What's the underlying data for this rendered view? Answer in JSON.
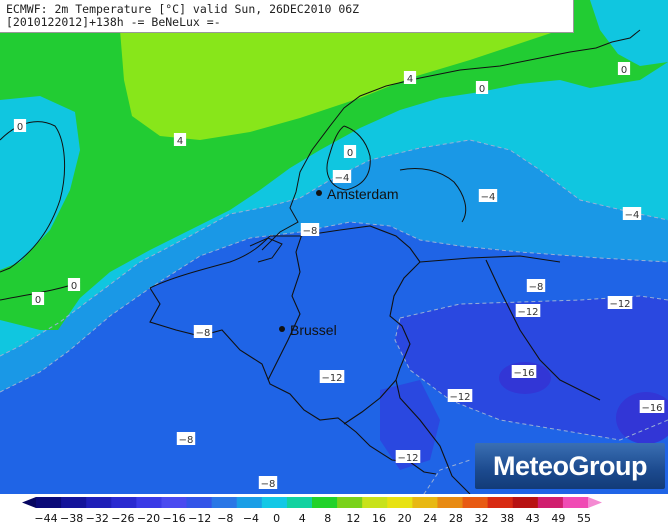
{
  "header": {
    "line1": "ECMWF: 2m Temperature [°C] valid Sun, 26DEC2010 06Z",
    "line2": "[2010122012]+138h -= BeNeLux =-"
  },
  "cities": [
    {
      "name": "Amsterdam"
    },
    {
      "name": "Brussel"
    }
  ],
  "isotherm_labels": [
    "4",
    "4",
    "0",
    "0",
    "0",
    "-4",
    "-4",
    "-4",
    "-8",
    "-8",
    "-8",
    "-8",
    "-8",
    "-12",
    "-12",
    "-12",
    "-12",
    "-12",
    "-16",
    "-16",
    "0",
    "0",
    "0"
  ],
  "logo": {
    "text": "MeteoGroup"
  },
  "colorbar": {
    "ticks": [
      "-44",
      "-38",
      "-32",
      "-26",
      "-20",
      "-16",
      "-12",
      "-8",
      "-4",
      "0",
      "4",
      "8",
      "12",
      "16",
      "20",
      "24",
      "28",
      "32",
      "38",
      "43",
      "49",
      "55"
    ],
    "colors": [
      "#0a0a78",
      "#14149a",
      "#1f1fb8",
      "#2a2ad0",
      "#3a3ae6",
      "#4a4af0",
      "#3355e8",
      "#2a77e6",
      "#1a9ee6",
      "#12c8e6",
      "#12d2a0",
      "#22d22a",
      "#7ad21a",
      "#c8e21a",
      "#e8e212",
      "#e8b812",
      "#e88a12",
      "#e85a12",
      "#d82a12",
      "#b81212",
      "#d01e6e",
      "#f04ab4"
    ],
    "left_arrow_color": "#060660",
    "right_arrow_color": "#f48ad2"
  },
  "map_colors": {
    "zone_0_4": "#22cc33",
    "zone_4_8": "#88e61a",
    "zone_m4_0": "#10c6e0",
    "zone_m8_m4": "#1a98e6",
    "zone_m12_m8": "#1f64e6",
    "zone_m16_m12": "#2a48e0",
    "zone_lt_m16": "#3236d6"
  }
}
